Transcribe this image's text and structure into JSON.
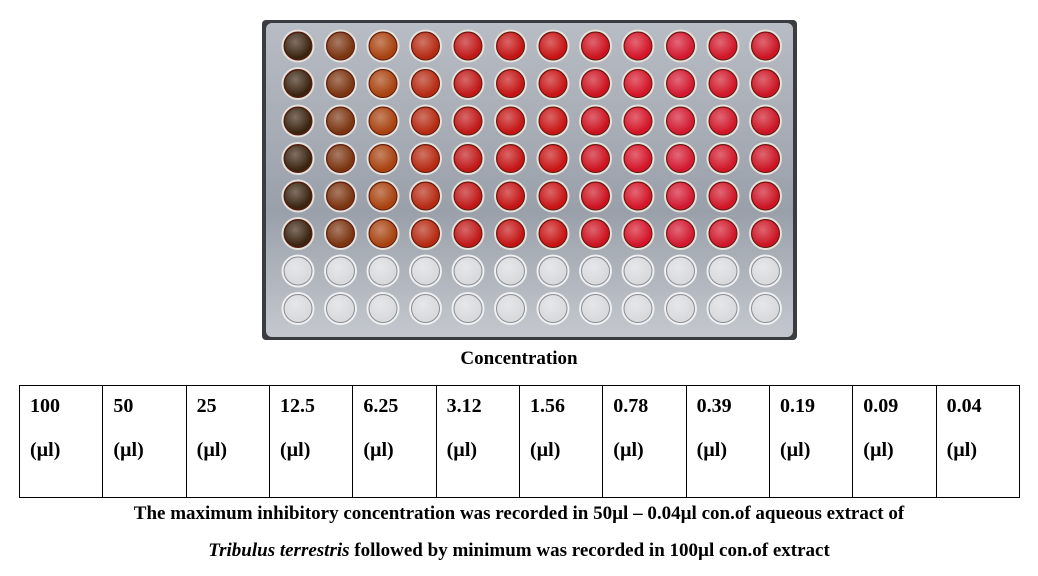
{
  "figure": {
    "plate_photo_icon": "microtiter-plate-photo",
    "rows": 8,
    "columns": 12,
    "treated_rows": 6,
    "well_colors": [
      "#3a2410",
      "#7a3410",
      "#a8420f",
      "#b52a12",
      "#c01818",
      "#c41414",
      "#c81414",
      "#cc1220",
      "#d41428",
      "#d21830",
      "#d01628",
      "#cc1424"
    ],
    "empty_well_color": "#d8dade"
  },
  "concentration_heading": "Concentration",
  "table": {
    "cells": [
      {
        "value": "100",
        "unit": "(µl)"
      },
      {
        "value": "50",
        "unit": "(µl)"
      },
      {
        "value": "25",
        "unit": "(µl)"
      },
      {
        "value": "12.5",
        "unit": "(µl)"
      },
      {
        "value": "6.25",
        "unit": "(µl)"
      },
      {
        "value": "3.12",
        "unit": "(µl)"
      },
      {
        "value": "1.56",
        "unit": "(µl)"
      },
      {
        "value": "0.78",
        "unit": "(µl)"
      },
      {
        "value": "0.39",
        "unit": "(µl)"
      },
      {
        "value": "0.19",
        "unit": "(µl)"
      },
      {
        "value": "0.09",
        "unit": "(µl)"
      },
      {
        "value": "0.04",
        "unit": "(µl)"
      }
    ]
  },
  "caption": {
    "line1": "The maximum inhibitory concentration was recorded in 50µl – 0.04µl con.of aqueous extract of",
    "line2_italic": "Tribulus terrestris",
    "line2_rest": " followed by minimum was recorded in 100µl con.of extract"
  }
}
